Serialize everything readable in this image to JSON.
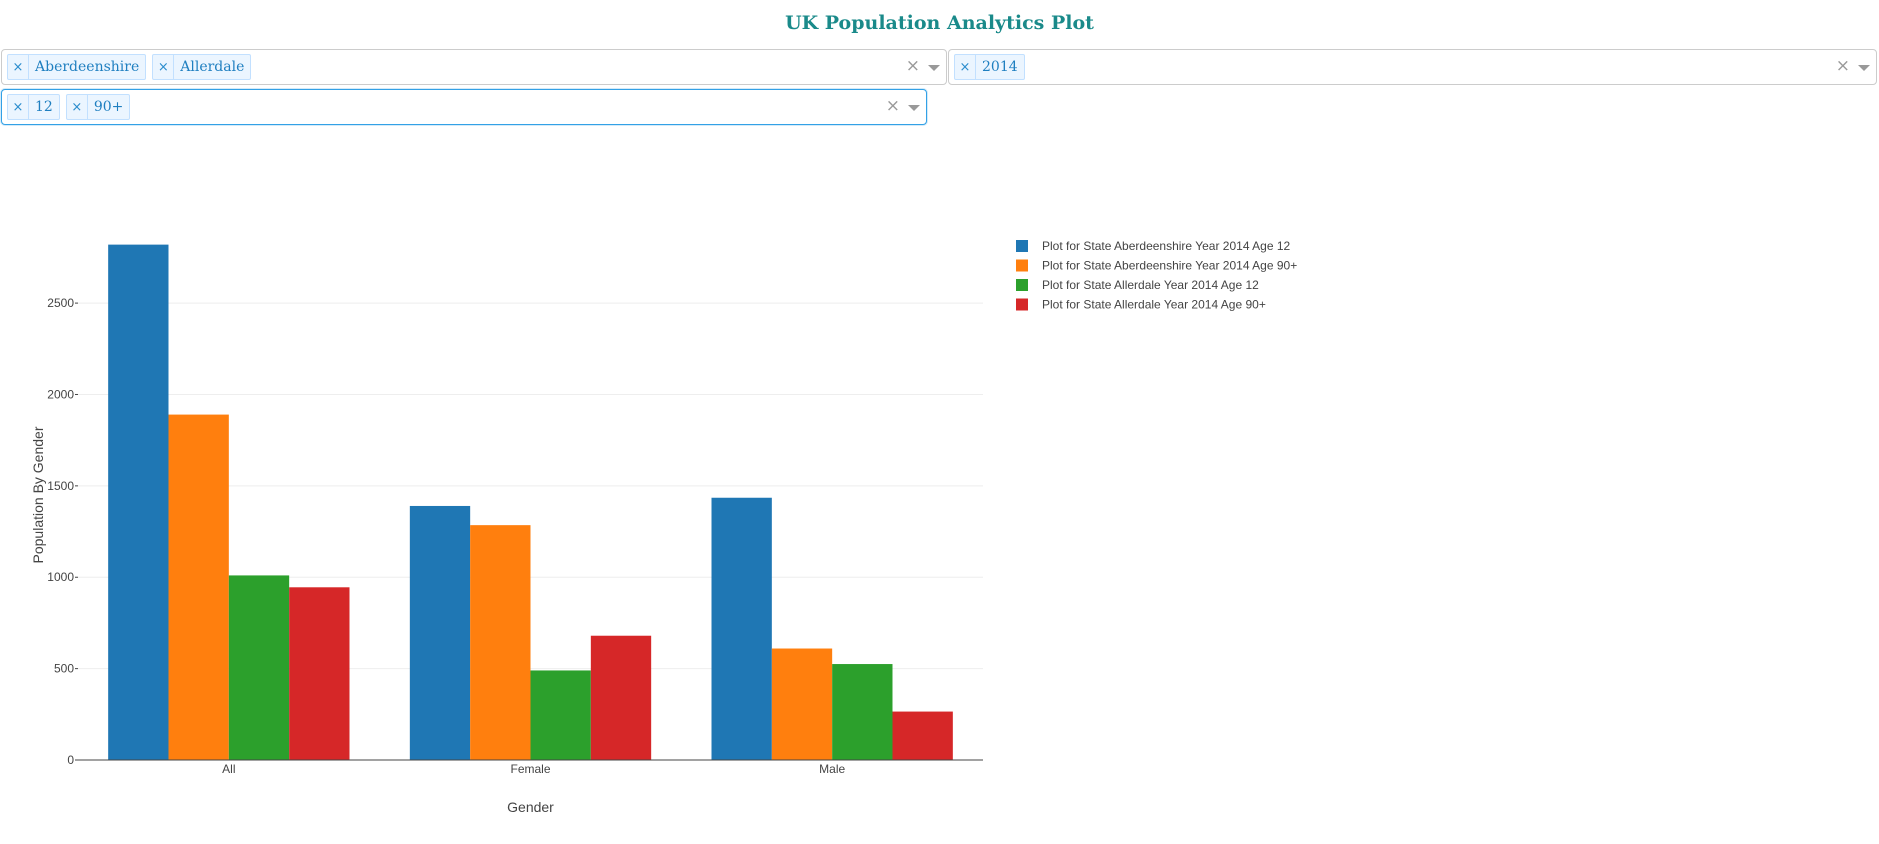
{
  "page": {
    "title": "UK Population Analytics Plot"
  },
  "filters": {
    "states": {
      "tags": [
        "Aberdeenshire",
        "Allerdale"
      ],
      "clear_icon": "×"
    },
    "years": {
      "tags": [
        "2014"
      ],
      "clear_icon": "×"
    },
    "ages": {
      "tags": [
        "12",
        "90+"
      ],
      "clear_icon": "×"
    },
    "tag_remove_icon": "×"
  },
  "colors": {
    "title": "#1a8a8a",
    "tag_text": "#1f7fc0",
    "tag_bg": "#ebf5ff",
    "focus_border": "#33a1e6"
  },
  "chart_data": {
    "type": "bar",
    "title": "",
    "xlabel": "Gender",
    "ylabel": "Population By Gender",
    "categories": [
      "All",
      "Female",
      "Male"
    ],
    "ylim": [
      0,
      2900
    ],
    "yticks": [
      0,
      500,
      1000,
      1500,
      2000,
      2500
    ],
    "grid": true,
    "legend_position": "top-right",
    "series": [
      {
        "name": "Plot for State Aberdeenshire Year 2014 Age 12",
        "color": "#1f77b4",
        "values": [
          2820,
          1390,
          1435
        ]
      },
      {
        "name": "Plot for State Aberdeenshire Year 2014 Age 90+",
        "color": "#ff7f0e",
        "values": [
          1890,
          1285,
          610
        ]
      },
      {
        "name": "Plot for State Allerdale Year 2014 Age 12",
        "color": "#2ca02c",
        "values": [
          1010,
          490,
          525
        ]
      },
      {
        "name": "Plot for State Allerdale Year 2014 Age 90+",
        "color": "#d62728",
        "values": [
          945,
          680,
          265
        ]
      }
    ]
  }
}
